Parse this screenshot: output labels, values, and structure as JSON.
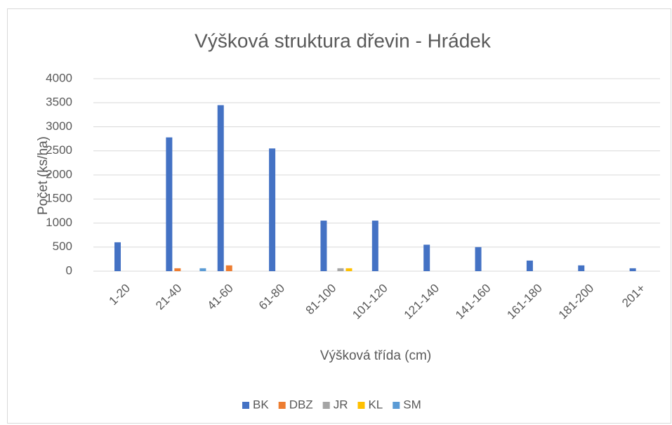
{
  "chart_data": {
    "type": "bar",
    "title": "Výšková struktura dřevin - Hrádek",
    "x_label": "Výšková třída (cm)",
    "y_label": "Počet (ks/ha)",
    "categories": [
      "1-20",
      "21-40",
      "41-60",
      "61-80",
      "81-100",
      "101-120",
      "121-140",
      "141-160",
      "161-180",
      "181-200",
      "201+"
    ],
    "series": [
      {
        "name": "BK",
        "color": "#4472c4",
        "values": [
          600,
          2780,
          3450,
          2550,
          1050,
          1050,
          550,
          500,
          220,
          120,
          60
        ]
      },
      {
        "name": "DBZ",
        "color": "#ed7d31",
        "values": [
          0,
          60,
          120,
          0,
          0,
          0,
          0,
          0,
          0,
          0,
          0
        ]
      },
      {
        "name": "JR",
        "color": "#a5a5a5",
        "values": [
          0,
          0,
          0,
          0,
          60,
          0,
          0,
          0,
          0,
          0,
          0
        ]
      },
      {
        "name": "KL",
        "color": "#ffc000",
        "values": [
          0,
          0,
          0,
          0,
          60,
          0,
          0,
          0,
          0,
          0,
          0
        ]
      },
      {
        "name": "SM",
        "color": "#5b9bd5",
        "values": [
          0,
          60,
          0,
          0,
          0,
          0,
          0,
          0,
          0,
          0,
          0
        ]
      }
    ],
    "ylim": [
      0,
      4000
    ],
    "yticks": [
      0,
      500,
      1000,
      1500,
      2000,
      2500,
      3000,
      3500,
      4000
    ],
    "grid": true,
    "legend": "bottom"
  }
}
